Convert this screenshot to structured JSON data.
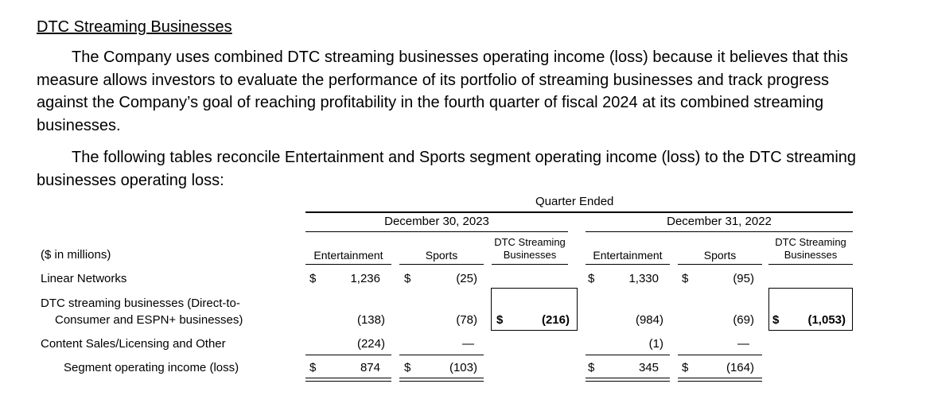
{
  "heading": "DTC Streaming Businesses",
  "paragraph1": "The Company uses combined DTC streaming businesses operating income (loss) because it believes that this measure allows investors to evaluate the performance of its portfolio of streaming businesses and track progress against the Company’s goal of reaching profitability in the fourth quarter of fiscal 2024 at its combined streaming businesses.",
  "paragraph2": "The following tables reconcile Entertainment and Sports segment operating income (loss) to the DTC streaming businesses operating loss:",
  "table": {
    "period_header": "Quarter Ended",
    "date1": "December 30, 2023",
    "date2": "December 31, 2022",
    "units": "($ in millions)",
    "col_entertainment": "Entertainment",
    "col_sports": "Sports",
    "col_dtc_line1": "DTC Streaming",
    "col_dtc_line2": "Businesses",
    "dollar": "$",
    "dash": "—",
    "rows": {
      "linear": {
        "label": "Linear Networks",
        "ent_2023": "1,236",
        "sports_2023": "(25)",
        "ent_2022": "1,330",
        "sports_2022": "(95)"
      },
      "dtc": {
        "label_line1": "DTC streaming businesses (Direct-to-",
        "label_line2": "Consumer and ESPN+ businesses)",
        "ent_2023": "(138)",
        "sports_2023": "(78)",
        "total_2023": "(216)",
        "ent_2022": "(984)",
        "sports_2022": "(69)",
        "total_2022": "(1,053)"
      },
      "content": {
        "label": "Content Sales/Licensing and Other",
        "ent_2023": "(224)",
        "ent_2022": "(1)"
      },
      "segment": {
        "label": "Segment operating income (loss)",
        "ent_2023": "874",
        "sports_2023": "(103)",
        "ent_2022": "345",
        "sports_2022": "(164)"
      }
    }
  }
}
